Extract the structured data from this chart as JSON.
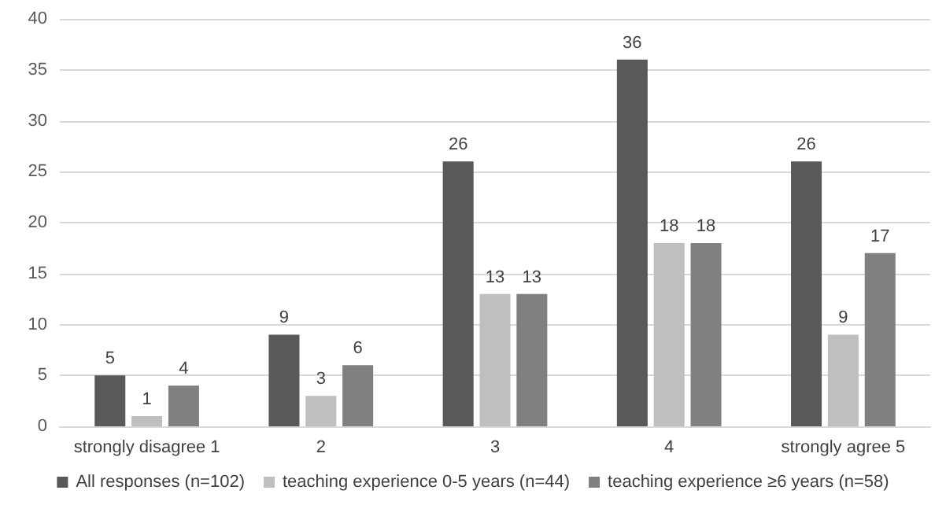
{
  "chart_data": {
    "type": "bar",
    "categories": [
      "strongly disagree 1",
      "2",
      "3",
      "4",
      "strongly agree 5"
    ],
    "series": [
      {
        "name": "All responses (n=102)",
        "color": "#595959",
        "values": [
          5,
          9,
          26,
          36,
          26
        ]
      },
      {
        "name": "teaching experience 0-5 years (n=44)",
        "color": "#bfbfbf",
        "values": [
          1,
          3,
          13,
          18,
          9
        ]
      },
      {
        "name": "teaching experience ≥6 years (n=58)",
        "color": "#808080",
        "values": [
          4,
          6,
          13,
          18,
          17
        ]
      }
    ],
    "ylim": [
      0,
      40
    ],
    "yticks": [
      0,
      5,
      10,
      15,
      20,
      25,
      30,
      35,
      40
    ],
    "grid": "y",
    "legend": "bottom",
    "data_labels": true
  }
}
